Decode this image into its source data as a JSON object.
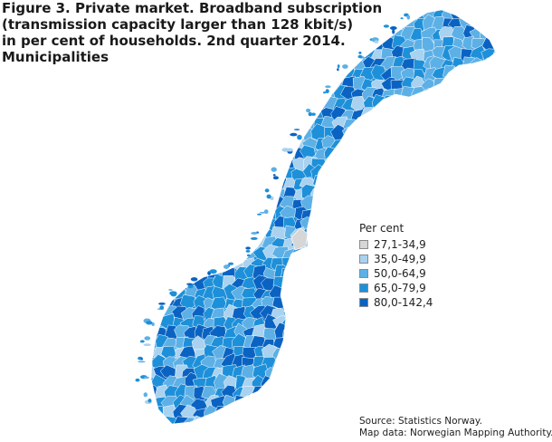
{
  "title_lines": [
    "Figure 3. Private market. Broadband subscription",
    "(transmission capacity larger than 128 kbit/s)",
    "in per cent of households. 2nd quarter 2014.",
    "Municipalities"
  ],
  "legend": {
    "title": "Per cent",
    "items": [
      {
        "label": "27,1-34,9",
        "color": "#d6d6d6"
      },
      {
        "label": "35,0-49,9",
        "color": "#a8d2f0"
      },
      {
        "label": "50,0-64,9",
        "color": "#5db0e6"
      },
      {
        "label": "65,0-79,9",
        "color": "#1e90d9"
      },
      {
        "label": "80,0-142,4",
        "color": "#0a63c2"
      }
    ]
  },
  "source_lines": [
    "Source: Statistics Norway.",
    "Map data: Norwegian Mapping Authority."
  ],
  "map_colors": {
    "border": "#ffffff",
    "coast": "#6fb6e9"
  }
}
